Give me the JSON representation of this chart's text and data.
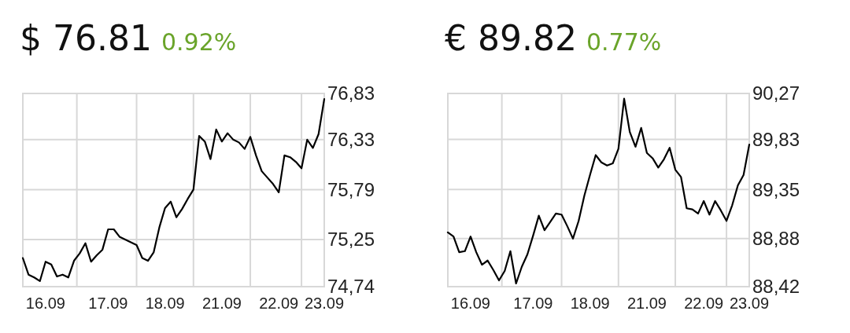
{
  "chart_data": [
    {
      "type": "line",
      "title": "$ 76.81",
      "subtitle": "0.92%",
      "grid": true,
      "marker": "none",
      "line_style": "solid",
      "categories": [
        null,
        null,
        null,
        null,
        "16.09",
        null,
        null,
        null,
        null,
        null,
        null,
        null,
        null,
        null,
        null,
        "17.09",
        null,
        null,
        null,
        null,
        null,
        null,
        null,
        null,
        null,
        "18.09",
        null,
        null,
        null,
        null,
        null,
        null,
        null,
        null,
        null,
        "21.09",
        null,
        null,
        null,
        null,
        null,
        null,
        null,
        null,
        null,
        "22.09",
        null,
        null,
        null,
        null,
        null,
        null,
        null,
        "23.09"
      ],
      "ylim": [
        74.74,
        76.83
      ],
      "yticks": [
        {
          "value": 74.74,
          "label": "74,74"
        },
        {
          "value": 75.25,
          "label": "75,25"
        },
        {
          "value": 75.79,
          "label": "75,79"
        },
        {
          "value": 76.33,
          "label": "76,33"
        },
        {
          "value": 76.83,
          "label": "76,83"
        }
      ],
      "series": [
        {
          "color": "#000000",
          "values": [
            75.05,
            74.87,
            74.84,
            74.8,
            75.01,
            74.98,
            74.85,
            74.87,
            74.84,
            75.02,
            75.1,
            75.21,
            75.01,
            75.08,
            75.14,
            75.36,
            75.36,
            75.28,
            75.25,
            75.22,
            75.19,
            75.05,
            75.02,
            75.11,
            75.38,
            75.59,
            75.66,
            75.49,
            75.58,
            75.69,
            75.79,
            76.37,
            76.31,
            76.12,
            76.44,
            76.31,
            76.4,
            76.33,
            76.3,
            76.23,
            76.36,
            76.16,
            75.99,
            75.92,
            75.85,
            75.76,
            76.16,
            76.14,
            76.09,
            76.02,
            76.33,
            76.24,
            76.39,
            76.77
          ]
        }
      ]
    },
    {
      "type": "line",
      "title": "€ 89.82",
      "subtitle": "0.77%",
      "grid": true,
      "marker": "none",
      "line_style": "solid",
      "categories": [
        null,
        null,
        null,
        null,
        "16.09",
        null,
        null,
        null,
        null,
        null,
        null,
        null,
        null,
        null,
        null,
        "17.09",
        null,
        null,
        null,
        null,
        null,
        null,
        null,
        null,
        null,
        "18.09",
        null,
        null,
        null,
        null,
        null,
        null,
        null,
        null,
        null,
        "21.09",
        null,
        null,
        null,
        null,
        null,
        null,
        null,
        null,
        null,
        "22.09",
        null,
        null,
        null,
        null,
        null,
        null,
        null,
        "23.09"
      ],
      "ylim": [
        88.42,
        90.27
      ],
      "yticks": [
        {
          "value": 88.42,
          "label": "88,42"
        },
        {
          "value": 88.88,
          "label": "88,88"
        },
        {
          "value": 89.35,
          "label": "89,35"
        },
        {
          "value": 89.83,
          "label": "89,83"
        },
        {
          "value": 90.27,
          "label": "90,27"
        }
      ],
      "series": [
        {
          "color": "#000000",
          "values": [
            88.94,
            88.9,
            88.75,
            88.76,
            88.9,
            88.75,
            88.63,
            88.67,
            88.58,
            88.48,
            88.57,
            88.76,
            88.45,
            88.61,
            88.73,
            88.91,
            89.1,
            88.96,
            89.04,
            89.12,
            89.11,
            89.0,
            88.88,
            89.05,
            89.29,
            89.49,
            89.68,
            89.61,
            89.58,
            89.6,
            89.74,
            90.22,
            89.9,
            89.76,
            89.94,
            89.7,
            89.65,
            89.56,
            89.64,
            89.75,
            89.54,
            89.47,
            89.17,
            89.16,
            89.12,
            89.24,
            89.11,
            89.24,
            89.15,
            89.05,
            89.2,
            89.39,
            89.49,
            89.78
          ]
        }
      ]
    }
  ]
}
